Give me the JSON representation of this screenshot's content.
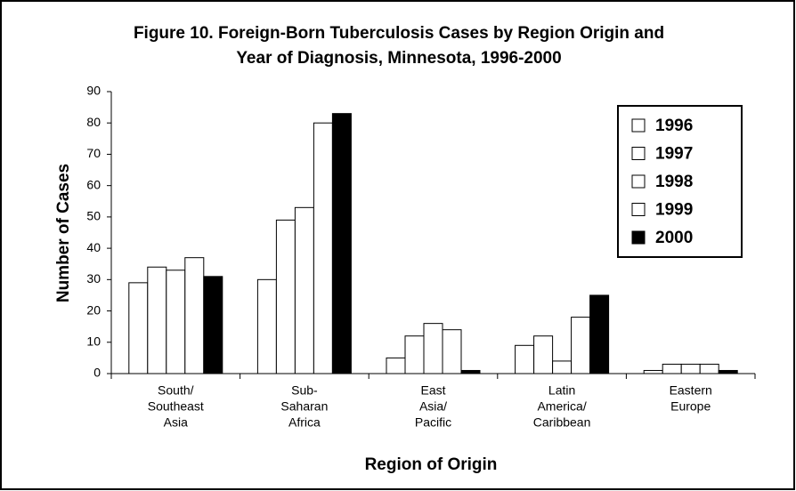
{
  "chart_data": {
    "type": "bar",
    "title": [
      "Figure 10.  Foreign-Born Tuberculosis Cases by Region Origin and",
      "Year of Diagnosis, Minnesota, 1996-2000"
    ],
    "x_label": "Region of Origin",
    "y_label": "Number of Cases",
    "categories": [
      [
        "South/",
        "Southeast",
        "Asia"
      ],
      [
        "Sub-",
        "Saharan",
        "Africa"
      ],
      [
        "East",
        "Asia/",
        "Pacific"
      ],
      [
        "Latin",
        "America/",
        "Caribbean"
      ],
      [
        "Eastern",
        "Europe"
      ]
    ],
    "series": [
      {
        "name": "1996",
        "color": "#ffffff",
        "values": [
          29,
          30,
          5,
          9,
          1
        ]
      },
      {
        "name": "1997",
        "color": "#ffffff",
        "values": [
          34,
          49,
          12,
          12,
          3
        ]
      },
      {
        "name": "1998",
        "color": "#ffffff",
        "values": [
          33,
          53,
          16,
          4,
          3
        ]
      },
      {
        "name": "1999",
        "color": "#ffffff",
        "values": [
          37,
          80,
          14,
          18,
          3
        ]
      },
      {
        "name": "2000",
        "color": "#000000",
        "values": [
          31,
          83,
          1,
          25,
          1
        ]
      }
    ],
    "ylim": [
      0,
      90
    ],
    "yticks": [
      0,
      10,
      20,
      30,
      40,
      50,
      60,
      70,
      80,
      90
    ],
    "legend": "top-right"
  }
}
